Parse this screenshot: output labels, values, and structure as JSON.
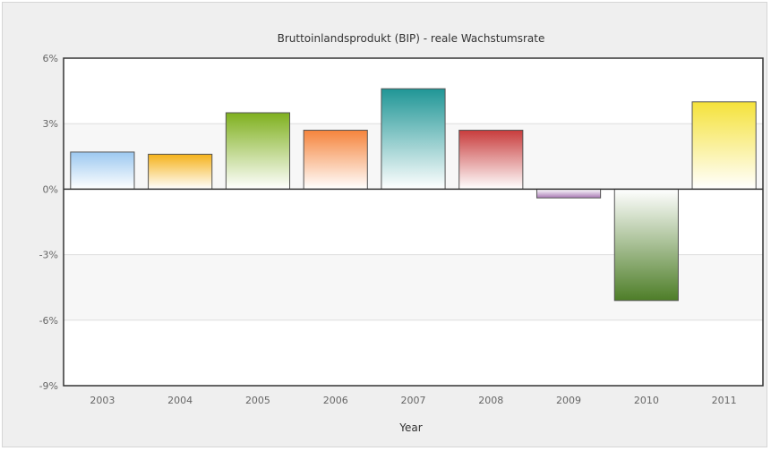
{
  "chart_data": {
    "type": "bar",
    "title": "Bruttoinlandsprodukt (BIP) - reale Wachstumsrate",
    "xlabel": "Year",
    "ylabel": "",
    "categories": [
      "2003",
      "2004",
      "2005",
      "2006",
      "2007",
      "2008",
      "2009",
      "2010",
      "2011"
    ],
    "values": [
      1.7,
      1.6,
      3.5,
      2.7,
      4.6,
      2.7,
      -0.4,
      -5.1,
      4.0
    ],
    "ylim": [
      -9,
      6
    ],
    "yticks": [
      6,
      3,
      0,
      -3,
      -6,
      -9
    ],
    "ytick_labels": [
      "6%",
      "3%",
      "0%",
      "-3%",
      "-6%",
      "-9%"
    ],
    "grid": true,
    "legend": "none",
    "bar_colors": [
      "#9cc8f0",
      "#f5b21a",
      "#7fb01e",
      "#f5843c",
      "#1f9696",
      "#c83c3c",
      "#a878b4",
      "#4e7e28",
      "#f5e23a"
    ],
    "zero_line_color": "#333333"
  }
}
